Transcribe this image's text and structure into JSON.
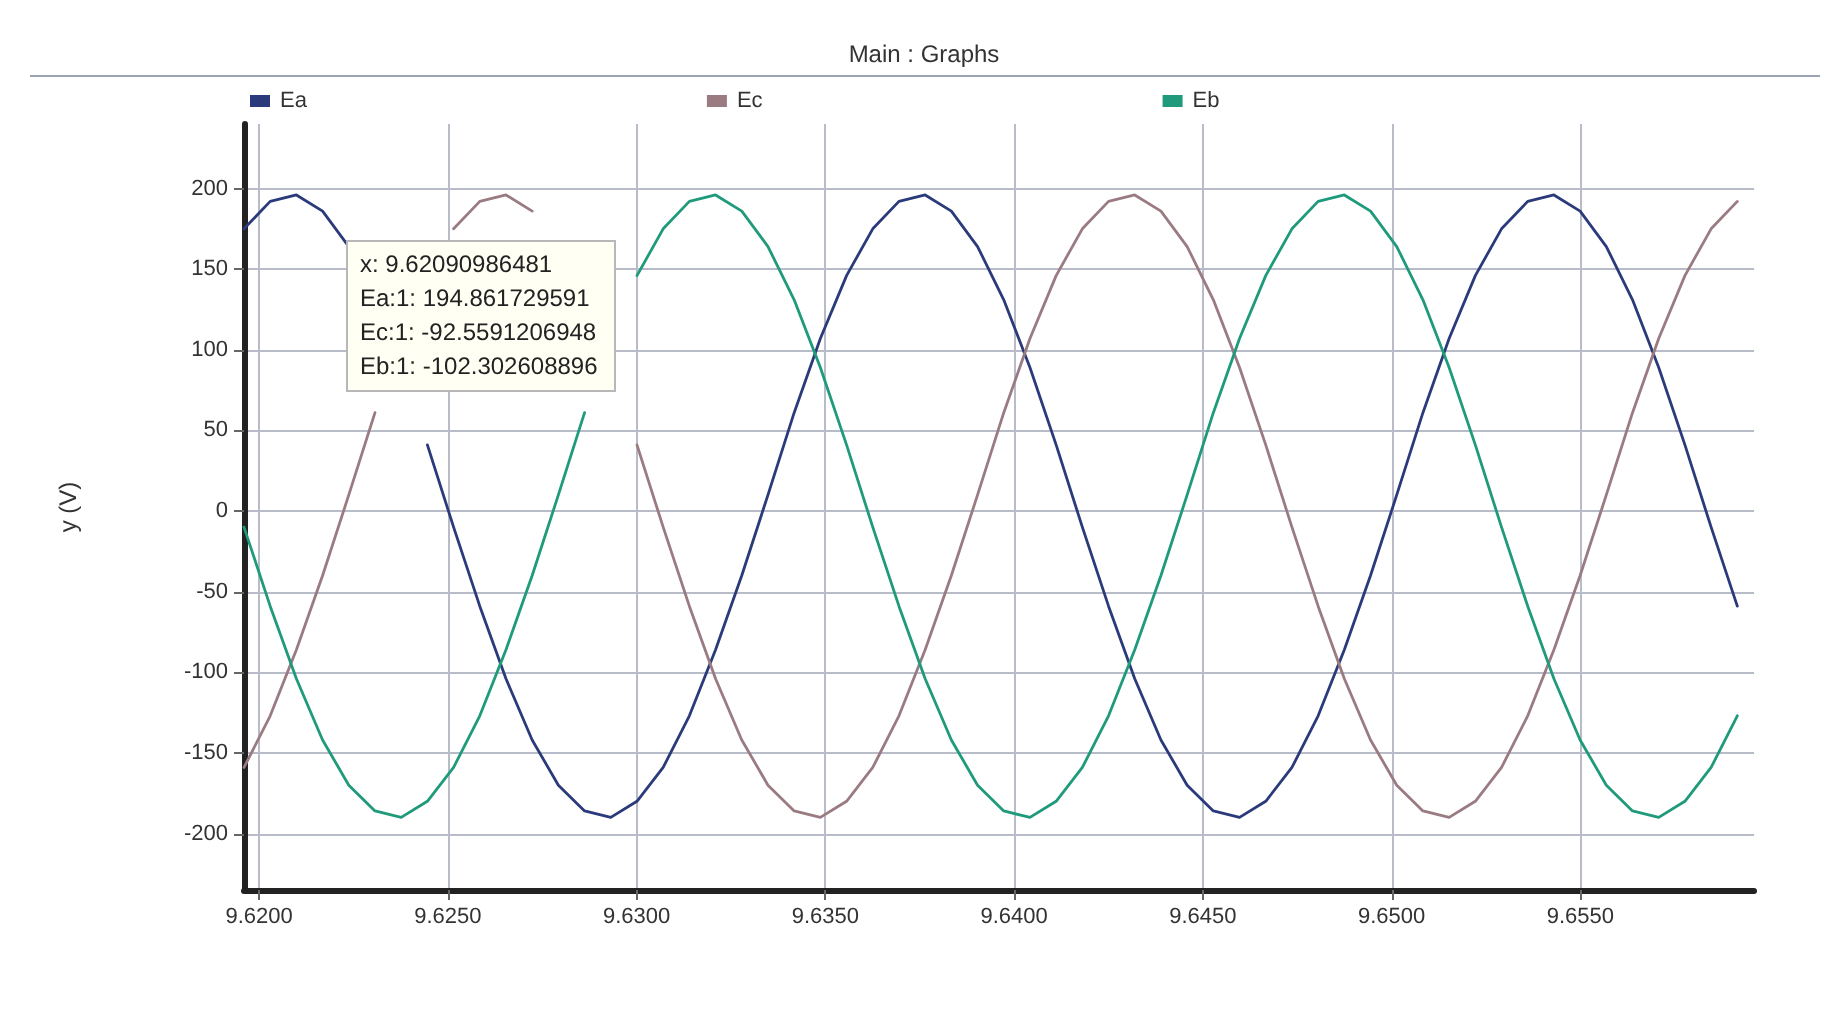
{
  "chart_data": {
    "type": "line",
    "title": "Main : Graphs",
    "ylabel": "y (V)",
    "annotations": [
      "x: 9.62090986481\nEa:1: 194.861729591\nEc:1: -92.5591206948\nEb:1: -102.302608896"
    ],
    "x": [
      9.6196,
      9.620294,
      9.620988,
      9.621682,
      9.622376,
      9.62307,
      9.623764,
      9.624458,
      9.625152,
      9.625846,
      9.62654,
      9.627234,
      9.627928,
      9.628622,
      9.629316,
      9.63001,
      9.630704,
      9.631398,
      9.632092,
      9.632786,
      9.63348,
      9.634174,
      9.634868,
      9.635562,
      9.636256,
      9.63695,
      9.637644,
      9.638338,
      9.639032,
      9.639726,
      9.64042,
      9.641114,
      9.641808,
      9.642502,
      9.643196,
      9.64389,
      9.644584,
      9.645278,
      9.645972,
      9.646666,
      9.64736,
      9.648054,
      9.648748,
      9.649442,
      9.650136,
      9.65083,
      9.651524,
      9.652218,
      9.652912,
      9.653606,
      9.6543,
      9.654994,
      9.655688,
      9.656382,
      9.657076,
      9.65777,
      9.658464,
      9.659158
    ],
    "series": [
      {
        "name": "Ea",
        "color": "#2b3a7a",
        "values": [
          175,
          192,
          196,
          186,
          164,
          null,
          null,
          41,
          -10,
          -59,
          -104,
          -142,
          -170,
          -186,
          -190,
          -180,
          -159,
          -127,
          -86,
          -40,
          10,
          61,
          107,
          146,
          175,
          192,
          196,
          186,
          164,
          131,
          89,
          41,
          -10,
          -59,
          -104,
          -142,
          -170,
          -186,
          -190,
          -180,
          -159,
          -127,
          -86,
          -40,
          10,
          61,
          107,
          146,
          175,
          192,
          196,
          186,
          164,
          131,
          89,
          41,
          -10,
          -59
        ]
      },
      {
        "name": "Ec",
        "color": "#9a7b82",
        "values": [
          -159,
          -127,
          -86,
          -40,
          10,
          61,
          null,
          null,
          175,
          192,
          196,
          186,
          null,
          null,
          null,
          41,
          -10,
          -59,
          -104,
          -142,
          -170,
          -186,
          -190,
          -180,
          -159,
          -127,
          -86,
          -40,
          10,
          61,
          107,
          146,
          175,
          192,
          196,
          186,
          164,
          131,
          89,
          41,
          -10,
          -59,
          -104,
          -142,
          -170,
          -186,
          -190,
          -180,
          -159,
          -127,
          -86,
          -40,
          10,
          61,
          107,
          146,
          175,
          192
        ]
      },
      {
        "name": "Eb",
        "color": "#1f9a7a",
        "values": [
          -10,
          -59,
          -104,
          -142,
          -170,
          -186,
          -190,
          -180,
          -159,
          -127,
          -86,
          -40,
          10,
          61,
          null,
          146,
          175,
          192,
          196,
          186,
          164,
          131,
          89,
          41,
          -10,
          -59,
          -104,
          -142,
          -170,
          -186,
          -190,
          -180,
          -159,
          -127,
          -86,
          -40,
          10,
          61,
          107,
          146,
          175,
          192,
          196,
          186,
          164,
          131,
          89,
          41,
          -10,
          -59,
          -104,
          -142,
          -170,
          -186,
          -190,
          -180,
          -159,
          -127
        ]
      }
    ],
    "xlim": [
      9.6196,
      9.6596
    ],
    "xticks": [
      {
        "value": 9.62,
        "label": "9.6200"
      },
      {
        "value": 9.625,
        "label": "9.6250"
      },
      {
        "value": 9.63,
        "label": "9.6300"
      },
      {
        "value": 9.635,
        "label": "9.6350"
      },
      {
        "value": 9.64,
        "label": "9.6400"
      },
      {
        "value": 9.645,
        "label": "9.6450"
      },
      {
        "value": 9.65,
        "label": "9.6500"
      },
      {
        "value": 9.655,
        "label": "9.6550"
      }
    ],
    "ylim": [
      -235,
      240
    ],
    "yticks": [
      -200,
      -150,
      -100,
      -50,
      0,
      50,
      100,
      150,
      200
    ],
    "grid": true,
    "legend": "top",
    "marker": "none",
    "line_style": "solid"
  }
}
